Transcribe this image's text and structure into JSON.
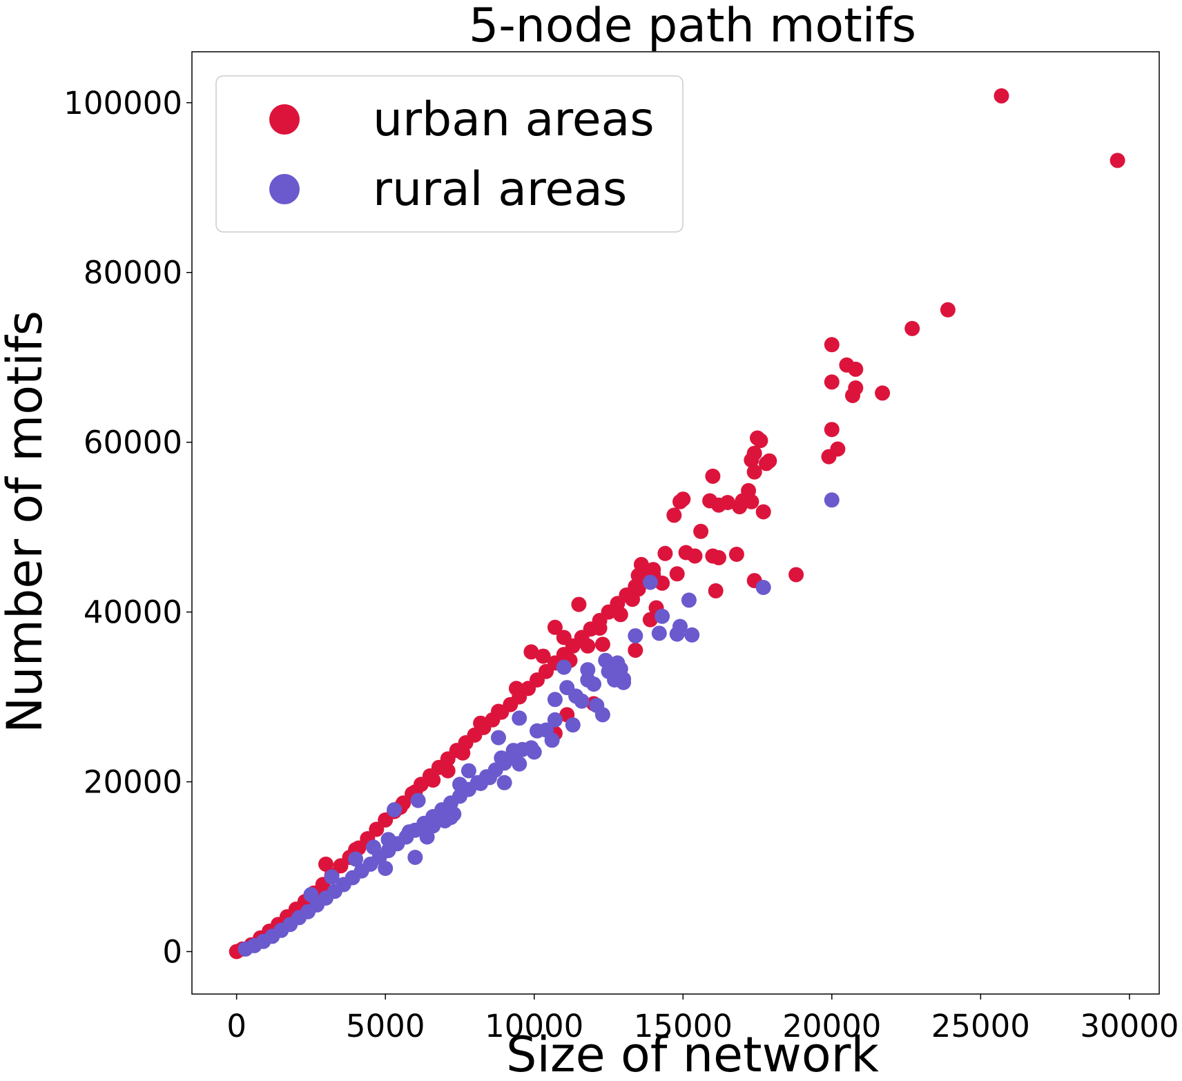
{
  "chart_data": {
    "type": "scatter",
    "title": "5-node path motifs",
    "xlabel": "Size of network",
    "ylabel": "Number of motifs",
    "xlim": [
      -1500,
      31000
    ],
    "ylim": [
      -5000,
      106000
    ],
    "xticks": [
      0,
      5000,
      10000,
      15000,
      20000,
      25000,
      30000
    ],
    "xtick_labels": [
      "0",
      "5000",
      "10000",
      "15000",
      "20000",
      "25000",
      "30000"
    ],
    "yticks": [
      0,
      20000,
      40000,
      60000,
      80000,
      100000
    ],
    "ytick_labels": [
      "0",
      "20000",
      "40000",
      "60000",
      "80000",
      "100000"
    ],
    "grid": false,
    "legend_position": "top-left",
    "series": [
      {
        "name": "urban areas",
        "color": "#dc143c",
        "points": [
          [
            0,
            0
          ],
          [
            200,
            300
          ],
          [
            500,
            800
          ],
          [
            800,
            1600
          ],
          [
            1100,
            2400
          ],
          [
            1400,
            3200
          ],
          [
            1700,
            4100
          ],
          [
            2000,
            5000
          ],
          [
            2300,
            5900
          ],
          [
            2600,
            6900
          ],
          [
            2900,
            7900
          ],
          [
            3200,
            9000
          ],
          [
            3500,
            10100
          ],
          [
            3800,
            11100
          ],
          [
            4100,
            12200
          ],
          [
            4400,
            13300
          ],
          [
            4700,
            14400
          ],
          [
            5000,
            15500
          ],
          [
            5300,
            16500
          ],
          [
            5600,
            17500
          ],
          [
            5900,
            18600
          ],
          [
            6200,
            19700
          ],
          [
            6500,
            20700
          ],
          [
            6800,
            21700
          ],
          [
            7100,
            22700
          ],
          [
            7400,
            23700
          ],
          [
            7700,
            24600
          ],
          [
            8000,
            25500
          ],
          [
            8300,
            26400
          ],
          [
            8600,
            27300
          ],
          [
            8900,
            28200
          ],
          [
            9200,
            29100
          ],
          [
            9500,
            30000
          ],
          [
            9800,
            31000
          ],
          [
            10100,
            32000
          ],
          [
            10400,
            33000
          ],
          [
            10700,
            34000
          ],
          [
            11000,
            35000
          ],
          [
            11300,
            36000
          ],
          [
            11600,
            37000
          ],
          [
            11900,
            38000
          ],
          [
            12200,
            39000
          ],
          [
            12500,
            40000
          ],
          [
            12800,
            41000
          ],
          [
            13100,
            42000
          ],
          [
            13400,
            43000
          ],
          [
            13700,
            44000
          ],
          [
            14000,
            45000
          ],
          [
            3000,
            10300
          ],
          [
            4000,
            12000
          ],
          [
            5500,
            17000
          ],
          [
            6000,
            18800
          ],
          [
            6600,
            20200
          ],
          [
            7100,
            21300
          ],
          [
            7600,
            23400
          ],
          [
            8200,
            26900
          ],
          [
            8800,
            28300
          ],
          [
            9400,
            31000
          ],
          [
            9900,
            35300
          ],
          [
            10300,
            34800
          ],
          [
            10700,
            38200
          ],
          [
            11000,
            37000
          ],
          [
            11200,
            34300
          ],
          [
            11500,
            40900
          ],
          [
            11800,
            36000
          ],
          [
            12200,
            38100
          ],
          [
            12300,
            36200
          ],
          [
            12000,
            29200
          ],
          [
            10700,
            25700
          ],
          [
            11100,
            27900
          ],
          [
            12900,
            39700
          ],
          [
            13300,
            41500
          ],
          [
            13500,
            44300
          ],
          [
            13600,
            45600
          ],
          [
            13900,
            39100
          ],
          [
            14000,
            44400
          ],
          [
            14300,
            43400
          ],
          [
            14400,
            46900
          ],
          [
            14700,
            51400
          ],
          [
            14900,
            53000
          ],
          [
            15000,
            53300
          ],
          [
            14800,
            44500
          ],
          [
            15100,
            47000
          ],
          [
            15400,
            46600
          ],
          [
            15600,
            49500
          ],
          [
            15900,
            53100
          ],
          [
            16000,
            56000
          ],
          [
            16200,
            52600
          ],
          [
            16000,
            46600
          ],
          [
            16200,
            46400
          ],
          [
            16100,
            42500
          ],
          [
            16500,
            52900
          ],
          [
            16800,
            46800
          ],
          [
            16900,
            52400
          ],
          [
            17000,
            53100
          ],
          [
            17200,
            54300
          ],
          [
            17300,
            53000
          ],
          [
            17300,
            57900
          ],
          [
            17400,
            58700
          ],
          [
            17500,
            60500
          ],
          [
            17600,
            60200
          ],
          [
            17400,
            43700
          ],
          [
            17700,
            51800
          ],
          [
            17800,
            57500
          ],
          [
            17900,
            57800
          ],
          [
            17400,
            56500
          ],
          [
            13400,
            35500
          ],
          [
            13500,
            42700
          ],
          [
            14100,
            40500
          ],
          [
            18800,
            44400
          ],
          [
            19900,
            58300
          ],
          [
            20000,
            61500
          ],
          [
            20200,
            59200
          ],
          [
            20000,
            67100
          ],
          [
            20000,
            71500
          ],
          [
            20500,
            69100
          ],
          [
            20700,
            65500
          ],
          [
            20800,
            66400
          ],
          [
            20800,
            68600
          ],
          [
            21700,
            65800
          ],
          [
            22700,
            73400
          ],
          [
            23900,
            75600
          ],
          [
            25700,
            100800
          ],
          [
            29600,
            93200
          ]
        ]
      },
      {
        "name": "rural areas",
        "color": "#6a5acd",
        "points": [
          [
            300,
            300
          ],
          [
            600,
            700
          ],
          [
            900,
            1200
          ],
          [
            1200,
            1800
          ],
          [
            1500,
            2500
          ],
          [
            1800,
            3200
          ],
          [
            2100,
            4000
          ],
          [
            2400,
            4700
          ],
          [
            2700,
            5500
          ],
          [
            3000,
            6300
          ],
          [
            3300,
            7100
          ],
          [
            3600,
            7900
          ],
          [
            3900,
            8700
          ],
          [
            4200,
            9500
          ],
          [
            4500,
            10300
          ],
          [
            4800,
            11100
          ],
          [
            5100,
            11900
          ],
          [
            5400,
            12700
          ],
          [
            5700,
            13500
          ],
          [
            6000,
            14300
          ],
          [
            6300,
            15100
          ],
          [
            6600,
            15900
          ],
          [
            6900,
            16700
          ],
          [
            7200,
            17500
          ],
          [
            7500,
            18300
          ],
          [
            7800,
            19100
          ],
          [
            8100,
            19900
          ],
          [
            8400,
            20600
          ],
          [
            8700,
            21400
          ],
          [
            9000,
            22200
          ],
          [
            9300,
            23000
          ],
          [
            9600,
            23800
          ],
          [
            2500,
            6700
          ],
          [
            3200,
            8800
          ],
          [
            4000,
            10900
          ],
          [
            4600,
            12300
          ],
          [
            5100,
            13200
          ],
          [
            5300,
            16700
          ],
          [
            5800,
            14100
          ],
          [
            6100,
            17800
          ],
          [
            6400,
            13500
          ],
          [
            6600,
            14800
          ],
          [
            7000,
            15400
          ],
          [
            7300,
            16200
          ],
          [
            7500,
            19700
          ],
          [
            7800,
            21300
          ],
          [
            8200,
            19800
          ],
          [
            8500,
            20500
          ],
          [
            8900,
            22800
          ],
          [
            8800,
            25200
          ],
          [
            9000,
            19900
          ],
          [
            9300,
            23700
          ],
          [
            9500,
            27500
          ],
          [
            9500,
            22100
          ],
          [
            9900,
            24000
          ],
          [
            10000,
            23500
          ],
          [
            10100,
            26000
          ],
          [
            10400,
            26100
          ],
          [
            10600,
            24900
          ],
          [
            10700,
            27300
          ],
          [
            10700,
            29700
          ],
          [
            11000,
            33500
          ],
          [
            11100,
            31100
          ],
          [
            11300,
            26700
          ],
          [
            11400,
            30100
          ],
          [
            11600,
            29500
          ],
          [
            11800,
            33200
          ],
          [
            11800,
            32000
          ],
          [
            12000,
            31500
          ],
          [
            12100,
            29000
          ],
          [
            12300,
            27900
          ],
          [
            12400,
            34300
          ],
          [
            12500,
            33000
          ],
          [
            12700,
            32000
          ],
          [
            12800,
            34000
          ],
          [
            12900,
            33300
          ],
          [
            13000,
            32100
          ],
          [
            13000,
            31700
          ],
          [
            13400,
            37200
          ],
          [
            13900,
            43500
          ],
          [
            14200,
            37500
          ],
          [
            14300,
            39500
          ],
          [
            14800,
            37400
          ],
          [
            14900,
            38300
          ],
          [
            15300,
            37300
          ],
          [
            15200,
            41400
          ],
          [
            17700,
            42900
          ],
          [
            20000,
            53200
          ],
          [
            6000,
            11100
          ],
          [
            5000,
            9800
          ],
          [
            7200,
            15800
          ]
        ]
      }
    ]
  }
}
